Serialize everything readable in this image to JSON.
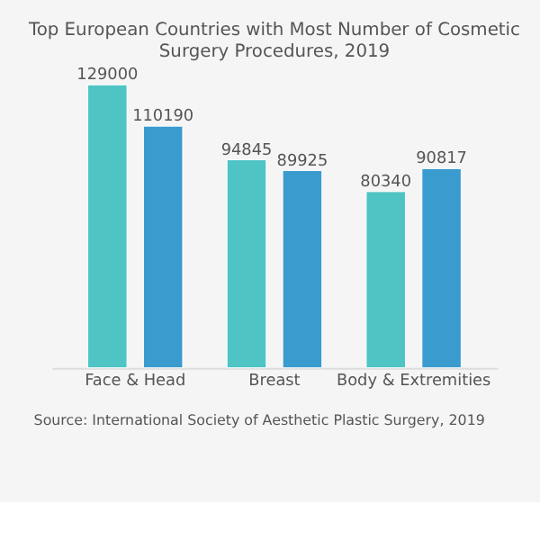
{
  "chart_data": {
    "type": "bar",
    "title": "Top European Countries with Most Number of Cosmetic Surgery Procedures, 2019",
    "categories": [
      "Face & Head",
      "Breast",
      "Body & Extremities"
    ],
    "series": [
      {
        "color": "#4fc4c4",
        "values": [
          129000,
          94845,
          80340
        ]
      },
      {
        "color": "#3a9bcf",
        "values": [
          110190,
          89925,
          90817
        ]
      }
    ],
    "data_labels": true,
    "grid": false,
    "annotations": [
      "Source: International Society of Aesthetic Plastic Surgery, 2019"
    ]
  }
}
